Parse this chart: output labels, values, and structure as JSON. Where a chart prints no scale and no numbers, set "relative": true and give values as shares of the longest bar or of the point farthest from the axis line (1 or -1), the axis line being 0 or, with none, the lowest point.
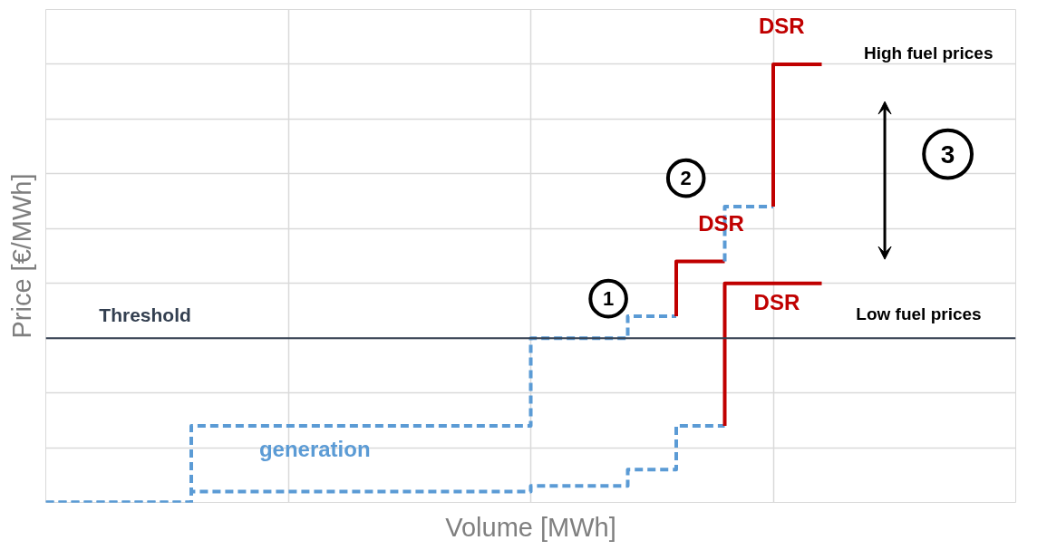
{
  "chart_data": {
    "type": "step",
    "relative": true,
    "xlabel": "Volume [MWh]",
    "ylabel": "Price [€/MWh]",
    "grid": true,
    "tick_labels": false,
    "categories": [
      null,
      null,
      null,
      null,
      null,
      null,
      null,
      null,
      null,
      null,
      null,
      null,
      null,
      null,
      null,
      null,
      null,
      null,
      null,
      null,
      null
    ],
    "series": [
      {
        "name": "generation",
        "color": "#5b9bd5",
        "line_style": "dashed",
        "values": [
          0,
          0,
          0,
          0,
          0.025,
          0.025,
          0.025,
          0.025,
          0.025,
          0.025,
          0.025,
          0.0375,
          0.0375,
          0.075,
          0.175,
          null,
          null,
          null,
          null,
          null,
          null
        ]
      },
      {
        "color": "#5b9bd5",
        "line_style": "dashed",
        "values": [
          0,
          0,
          0,
          0,
          0.175,
          0.175,
          0.175,
          0.175,
          0.175,
          0.175,
          0.175,
          0.375,
          0.375,
          0.425,
          null,
          null,
          null,
          null,
          null,
          null,
          null
        ]
      },
      {
        "name": "DSR",
        "color": "#c00000",
        "line_style": "solid",
        "values": [
          null,
          null,
          null,
          null,
          null,
          null,
          null,
          null,
          null,
          null,
          null,
          null,
          null,
          null,
          0.175,
          0.5,
          0.5,
          null,
          null,
          null,
          null
        ]
      },
      {
        "name": "DSR",
        "color": "#c00000",
        "line_style": "solid",
        "values": [
          null,
          null,
          null,
          null,
          null,
          null,
          null,
          null,
          null,
          null,
          null,
          null,
          null,
          0.425,
          0.55,
          null,
          null,
          null,
          null,
          null,
          null
        ]
      },
      {
        "color": "#5b9bd5",
        "line_style": "dashed",
        "values": [
          null,
          null,
          null,
          null,
          null,
          null,
          null,
          null,
          null,
          null,
          null,
          null,
          null,
          null,
          0.55,
          0.675,
          null,
          null,
          null,
          null,
          null
        ]
      },
      {
        "name": "DSR",
        "color": "#c00000",
        "line_style": "solid",
        "values": [
          null,
          null,
          null,
          null,
          null,
          null,
          null,
          null,
          null,
          null,
          null,
          null,
          null,
          null,
          null,
          0.675,
          1.0,
          null,
          null,
          null,
          null
        ]
      }
    ],
    "ref_lines": [
      {
        "axis": "y",
        "value": 0.375,
        "label": "Threshold",
        "color": "#333f50"
      }
    ],
    "annotations": [
      "1",
      "2",
      "3",
      "High fuel prices",
      "Low fuel prices"
    ]
  }
}
